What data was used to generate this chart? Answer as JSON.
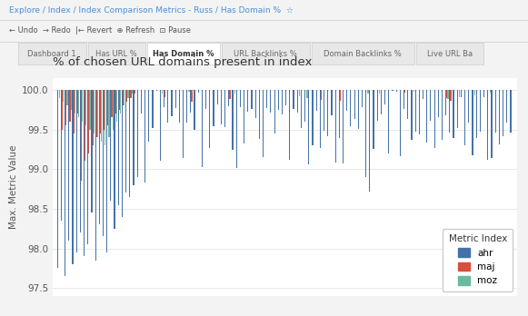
{
  "title": "% of chosen URL domains present in index",
  "ylabel": "Max. Metric Value",
  "ylim": [
    97.4,
    100.15
  ],
  "yticks": [
    97.5,
    98.0,
    98.5,
    99.0,
    99.5,
    100.0
  ],
  "colors": {
    "ahr": "#4472a8",
    "maj": "#d94f3d",
    "moz": "#6db8a0"
  },
  "legend_labels": [
    "ahr",
    "maj",
    "moz"
  ],
  "background": "#ffffff",
  "grid_color": "#e8e8e8",
  "chrome_bg": "#f3f3f3",
  "chrome_border": "#d0d0d0",
  "tab_active_color": "#ffffff",
  "tab_text": "#333333",
  "breadcrumb_color": "#4a90d9",
  "n_total": 120
}
